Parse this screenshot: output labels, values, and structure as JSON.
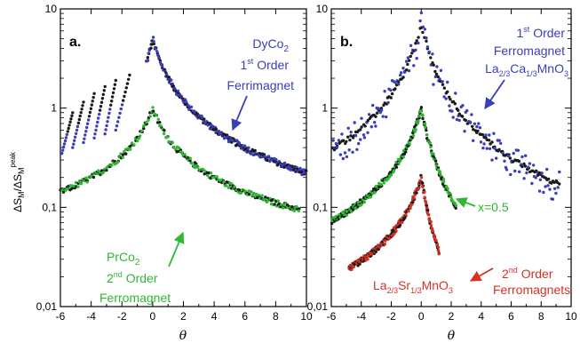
{
  "colors": {
    "blue": "#3a3fb8",
    "green": "#2fb832",
    "black": "#1a1a1a",
    "red": "#d43226"
  },
  "common": {
    "y_axis_title": "ΔS",
    "y_axis_sub1": "M",
    "y_axis_mid": "/ΔS",
    "y_axis_sub2": "M",
    "y_axis_sup": "peak",
    "x_axis_title": "θ",
    "y_tick_labels": [
      "0,01",
      "0,1",
      "1",
      "10"
    ]
  },
  "chart_data": [
    {
      "type": "scatter",
      "panel_label": "a.",
      "xlim": [
        -6,
        10
      ],
      "ylim": [
        0.01,
        10
      ],
      "yscale": "log",
      "x_tick_labels": [
        "-6",
        "-4",
        "-2",
        "0",
        "2",
        "4",
        "6",
        "8",
        "10"
      ],
      "annotations": {
        "top_material_base": "DyCo",
        "top_material_sub": "2",
        "top_order_num": "1",
        "top_order_sup": "st",
        "top_order_word": " Order",
        "top_type": "Ferrimagnet",
        "bottom_material_base": "PrCo",
        "bottom_material_sub": "2",
        "bottom_order_num": "2",
        "bottom_order_sup": "nd",
        "bottom_order_word": " Order",
        "bottom_type": "Ferromagnet"
      },
      "series": [
        {
          "color": "blue",
          "peak": 5,
          "left_exp": 1.6,
          "right_exp": 1.3,
          "xmin": -0.4,
          "xmax": 10
        },
        {
          "color": "green",
          "peak": 1,
          "left_exp": 1.0,
          "right_exp": 1.0,
          "xmin": -6,
          "xmax": 9.5
        }
      ],
      "first_order_fans": {
        "color": "blue",
        "starts_x": [
          -5.9,
          -5.2,
          -4.5,
          -3.8,
          -3.1,
          -2.4
        ],
        "ends_x": [
          -5.2,
          -4.5,
          -3.8,
          -3.1,
          -2.4,
          -1.5
        ]
      }
    },
    {
      "type": "scatter",
      "panel_label": "b.",
      "xlim": [
        -6,
        10
      ],
      "ylim": [
        0.01,
        10
      ],
      "yscale": "log",
      "x_tick_labels": [
        "-6",
        "-4",
        "-2",
        "0",
        "2",
        "4",
        "6",
        "8",
        "10"
      ],
      "annotations": {
        "top_order_num": "1",
        "top_order_sup": "st",
        "top_order_word": " Order",
        "top_type": "Ferromagnet",
        "top_material": "La2/3Ca1/3MnO3",
        "mid_label": "x=0.5",
        "bottom_order_num": "2",
        "bottom_order_sup": "nd",
        "bottom_order_word": " Order",
        "bottom_type": "Ferromagnets",
        "bottom_material": "La2/3Sr1/3MnO3"
      },
      "series": [
        {
          "color": "blue",
          "peak": 7,
          "left_exp": 1.5,
          "right_exp": 1.6,
          "xmin": -6,
          "xmax": 9.2
        },
        {
          "color": "green",
          "peak": 1,
          "left_exp": 1.35,
          "right_exp": 1.9,
          "xmin": -6,
          "xmax": 2.3
        },
        {
          "color": "red",
          "peak": 0.2,
          "left_exp": 1.2,
          "right_exp": 2.2,
          "xmin": -4.8,
          "xmax": 1.2
        }
      ]
    }
  ]
}
